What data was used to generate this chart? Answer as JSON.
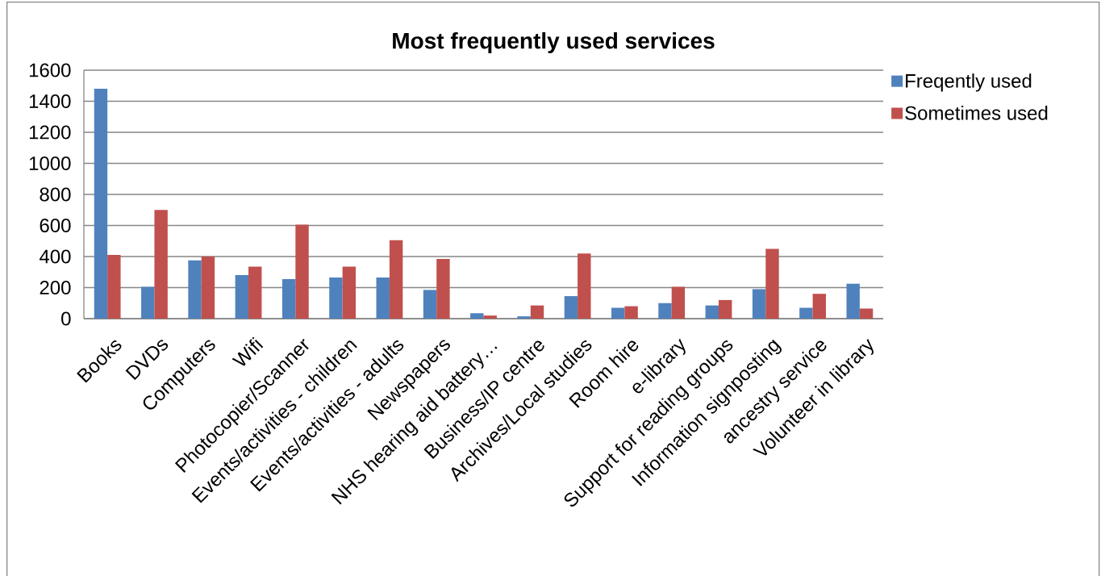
{
  "chart_data": {
    "type": "bar",
    "title": "Most frequently used services",
    "categories": [
      "Books",
      "DVDs",
      "Computers",
      "Wifi",
      "Photocopier/Scanner",
      "Events/activities - children",
      "Events/activities - adults",
      "Newspapers",
      "NHS hearing aid battery…",
      "Business/IP centre",
      "Archives/Local studies",
      "Room hire",
      "e-library",
      "Support for reading groups",
      "Information signposting",
      "ancestry service",
      "Volunteer in library"
    ],
    "series": [
      {
        "name": "Freqently used",
        "color": "#4f81bd",
        "values": [
          1480,
          205,
          375,
          280,
          255,
          265,
          265,
          185,
          35,
          15,
          145,
          70,
          100,
          85,
          190,
          70,
          225
        ]
      },
      {
        "name": "Sometimes used",
        "color": "#c0504d",
        "values": [
          410,
          700,
          400,
          335,
          605,
          335,
          505,
          385,
          20,
          85,
          420,
          80,
          205,
          120,
          450,
          160,
          65
        ]
      }
    ],
    "ylim": [
      0,
      1600
    ],
    "yticks": [
      0,
      200,
      400,
      600,
      800,
      1000,
      1200,
      1400,
      1600
    ],
    "grid": "y",
    "legend": "right"
  }
}
